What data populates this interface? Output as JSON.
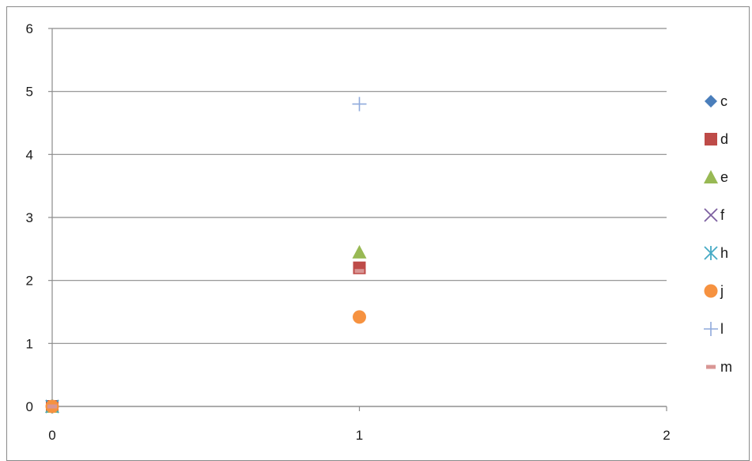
{
  "chart_data": {
    "type": "scatter",
    "title": "",
    "xlabel": "",
    "ylabel": "",
    "xlim": [
      0,
      2
    ],
    "ylim": [
      0,
      6
    ],
    "x_ticks": [
      "0",
      "1",
      "2"
    ],
    "y_ticks": [
      "0",
      "1",
      "2",
      "3",
      "4",
      "5",
      "6"
    ],
    "grid": "horizontal",
    "legend_position": "right",
    "series": [
      {
        "name": "c",
        "marker": "diamond",
        "color": "#4a7ebb",
        "points": [
          [
            0,
            0
          ]
        ]
      },
      {
        "name": "d",
        "marker": "square",
        "color": "#be4b48",
        "points": [
          [
            0,
            0
          ],
          [
            1,
            2.2
          ]
        ]
      },
      {
        "name": "e",
        "marker": "triangle",
        "color": "#98b954",
        "points": [
          [
            0,
            0
          ],
          [
            1,
            2.45
          ]
        ]
      },
      {
        "name": "f",
        "marker": "x",
        "color": "#7d60a0",
        "points": [
          [
            0,
            0
          ]
        ]
      },
      {
        "name": "h",
        "marker": "star",
        "color": "#46aac5",
        "points": [
          [
            0,
            0
          ]
        ]
      },
      {
        "name": "j",
        "marker": "circle",
        "color": "#f69240",
        "points": [
          [
            0,
            0
          ],
          [
            1,
            1.42
          ]
        ]
      },
      {
        "name": "l",
        "marker": "plus",
        "color": "#8faadc",
        "points": [
          [
            1,
            4.8
          ]
        ]
      },
      {
        "name": "m",
        "marker": "dash",
        "color": "#d99694",
        "points": [
          [
            0,
            0
          ],
          [
            1,
            2.15
          ]
        ]
      }
    ]
  }
}
